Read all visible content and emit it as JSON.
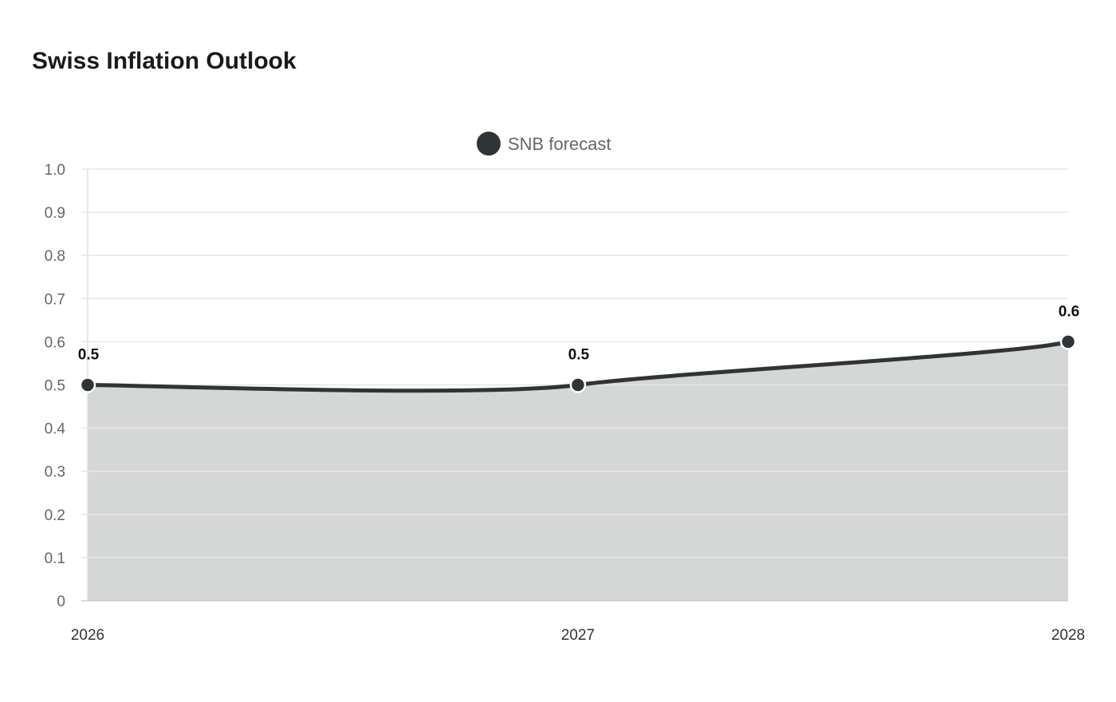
{
  "chart_data": {
    "type": "area",
    "title": "Swiss Inflation Outlook",
    "categories": [
      "2026",
      "2027",
      "2028"
    ],
    "series": [
      {
        "name": "SNB forecast",
        "values": [
          0.5,
          0.5,
          0.6
        ],
        "color": "#2f3437",
        "fill": "#d5d6d6"
      }
    ],
    "data_labels": [
      "0.5",
      "0.5",
      "0.6"
    ],
    "ylim": [
      0,
      1.0
    ],
    "yticks": [
      "0",
      "0.1",
      "0.2",
      "0.3",
      "0.4",
      "0.5",
      "0.6",
      "0.7",
      "0.8",
      "0.9",
      "1.0"
    ],
    "xlabel": "",
    "ylabel": "",
    "grid": true,
    "legend": "top-center",
    "smooth": true
  }
}
